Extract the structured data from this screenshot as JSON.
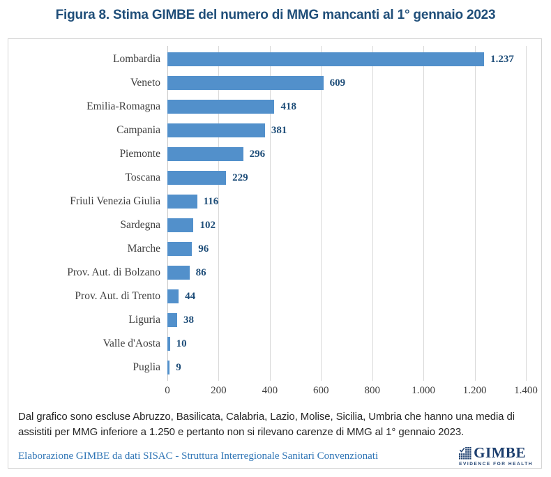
{
  "page": {
    "title": "Figura 8. Stima GIMBE del numero di MMG mancanti al 1° gennaio 2023"
  },
  "chart_data": {
    "type": "bar",
    "orientation": "horizontal",
    "title": "Figura 8. Stima GIMBE del numero di MMG mancanti al 1° gennaio 2023",
    "categories": [
      "Lombardia",
      "Veneto",
      "Emilia-Romagna",
      "Campania",
      "Piemonte",
      "Toscana",
      "Friuli Venezia Giulia",
      "Sardegna",
      "Marche",
      "Prov. Aut. di Bolzano",
      "Prov. Aut. di Trento",
      "Liguria",
      "Valle d'Aosta",
      "Puglia"
    ],
    "values": [
      1237,
      609,
      418,
      381,
      296,
      229,
      116,
      102,
      96,
      86,
      44,
      38,
      10,
      9
    ],
    "value_labels": [
      "1.237",
      "609",
      "418",
      "381",
      "296",
      "229",
      "116",
      "102",
      "96",
      "86",
      "44",
      "38",
      "10",
      "9"
    ],
    "xlabel": "",
    "ylabel": "",
    "xlim": [
      0,
      1400
    ],
    "x_tick_values": [
      0,
      200,
      400,
      600,
      800,
      1000,
      1200,
      1400
    ],
    "x_tick_labels": [
      "0",
      "200",
      "400",
      "600",
      "800",
      "1.000",
      "1.200",
      "1.400"
    ],
    "grid": "vertical",
    "legend": "none"
  },
  "panel": {
    "footnote": "Dal grafico sono escluse Abruzzo, Basilicata, Calabria, Lazio, Molise, Sicilia, Umbria che hanno una media di assistiti per MMG inferiore a 1.250 e pertanto non si rilevano carenze di MMG al 1° gennaio 2023.",
    "attribution": "Elaborazione GIMBE da dati SISAC - Struttura Interregionale Sanitari Convenzionati"
  },
  "logo": {
    "name": "GIMBE",
    "tagline": "EVIDENCE FOR HEALTH"
  },
  "colors": {
    "bar": "#5290cb",
    "title": "#1f4e79",
    "value_label": "#1f4e79",
    "category_label": "#3f3f3f",
    "gridline": "#d9d9d9",
    "panel_border": "#d5d5d5",
    "attribution": "#2e74b5",
    "logo_navy": "#1c3e6e"
  }
}
